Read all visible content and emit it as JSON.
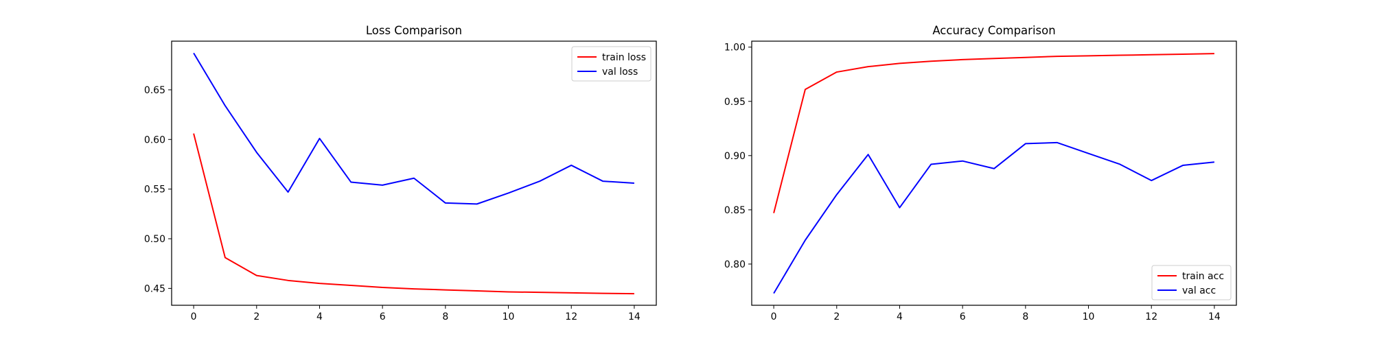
{
  "chart_data": [
    {
      "type": "line",
      "title": "Loss Comparison",
      "xlabel": "",
      "ylabel": "",
      "x": [
        0,
        1,
        2,
        3,
        4,
        5,
        6,
        7,
        8,
        9,
        10,
        11,
        12,
        13,
        14
      ],
      "xticks": [
        0,
        2,
        4,
        6,
        8,
        10,
        12,
        14
      ],
      "xticks_labels": [
        "0",
        "2",
        "4",
        "6",
        "8",
        "10",
        "12",
        "14"
      ],
      "yticks": [
        0.45,
        0.5,
        0.55,
        0.6,
        0.65
      ],
      "yticks_labels": [
        "0.45",
        "0.50",
        "0.55",
        "0.60",
        "0.65"
      ],
      "xlim": [
        -0.7,
        14.7
      ],
      "ylim": [
        0.433,
        0.699
      ],
      "grid": false,
      "legend_position": "top-right",
      "series": [
        {
          "name": "train loss",
          "color": "#ff0000",
          "values": [
            0.606,
            0.481,
            0.463,
            0.458,
            0.455,
            0.453,
            0.451,
            0.4495,
            0.4485,
            0.4475,
            0.4465,
            0.446,
            0.4455,
            0.445,
            0.4447
          ]
        },
        {
          "name": "val loss",
          "color": "#0000ff",
          "values": [
            0.687,
            0.634,
            0.587,
            0.547,
            0.601,
            0.557,
            0.554,
            0.561,
            0.536,
            0.535,
            0.546,
            0.558,
            0.574,
            0.558,
            0.556
          ]
        }
      ]
    },
    {
      "type": "line",
      "title": "Accuracy Comparison",
      "xlabel": "",
      "ylabel": "",
      "x": [
        0,
        1,
        2,
        3,
        4,
        5,
        6,
        7,
        8,
        9,
        10,
        11,
        12,
        13,
        14
      ],
      "xticks": [
        0,
        2,
        4,
        6,
        8,
        10,
        12,
        14
      ],
      "xticks_labels": [
        "0",
        "2",
        "4",
        "6",
        "8",
        "10",
        "12",
        "14"
      ],
      "yticks": [
        0.8,
        0.85,
        0.9,
        0.95,
        1.0
      ],
      "yticks_labels": [
        "0.80",
        "0.85",
        "0.90",
        "0.95",
        "1.00"
      ],
      "xlim": [
        -0.7,
        14.7
      ],
      "ylim": [
        0.762,
        1.0055
      ],
      "grid": false,
      "legend_position": "bottom-right",
      "series": [
        {
          "name": "train acc",
          "color": "#ff0000",
          "values": [
            0.847,
            0.961,
            0.977,
            0.982,
            0.985,
            0.987,
            0.9885,
            0.9895,
            0.9905,
            0.9915,
            0.992,
            0.9925,
            0.993,
            0.9935,
            0.994
          ]
        },
        {
          "name": "val acc",
          "color": "#0000ff",
          "values": [
            0.773,
            0.822,
            0.864,
            0.901,
            0.852,
            0.892,
            0.895,
            0.888,
            0.911,
            0.912,
            0.902,
            0.892,
            0.877,
            0.891,
            0.894
          ]
        }
      ]
    }
  ]
}
